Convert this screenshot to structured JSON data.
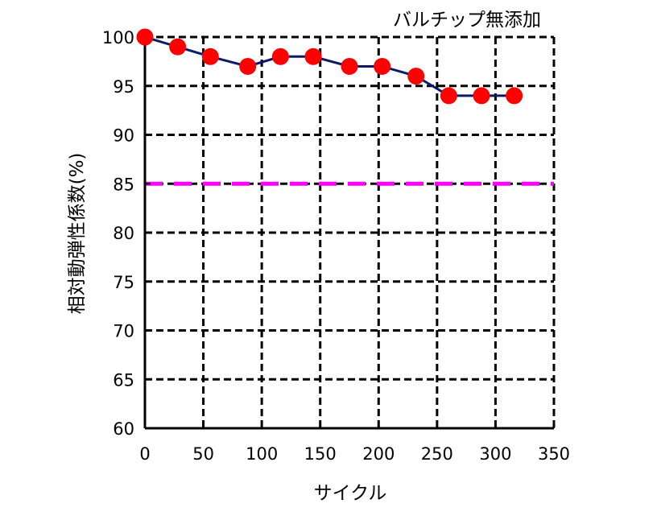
{
  "chart_data": {
    "type": "line",
    "title": "バルチップ無添加",
    "xlabel": "サイクル",
    "ylabel": "相対動弾性係数(%)",
    "xlim": [
      0,
      350
    ],
    "ylim": [
      60,
      100
    ],
    "x_ticks": [
      0,
      50,
      100,
      150,
      200,
      250,
      300,
      350
    ],
    "y_ticks": [
      60,
      65,
      70,
      75,
      80,
      85,
      90,
      95,
      100
    ],
    "grid": true,
    "series": [
      {
        "x": [
          0,
          28,
          56,
          88,
          116,
          144,
          175,
          203,
          232,
          260,
          288,
          316
        ],
        "y": [
          100,
          99,
          98,
          97,
          98,
          98,
          97,
          97,
          96,
          94,
          94,
          94
        ],
        "line_color": "#0b1a6b",
        "marker_color": "#ff0000"
      }
    ],
    "reference_line": {
      "y": 85,
      "color": "#ff00ff",
      "style": "dashed"
    }
  }
}
